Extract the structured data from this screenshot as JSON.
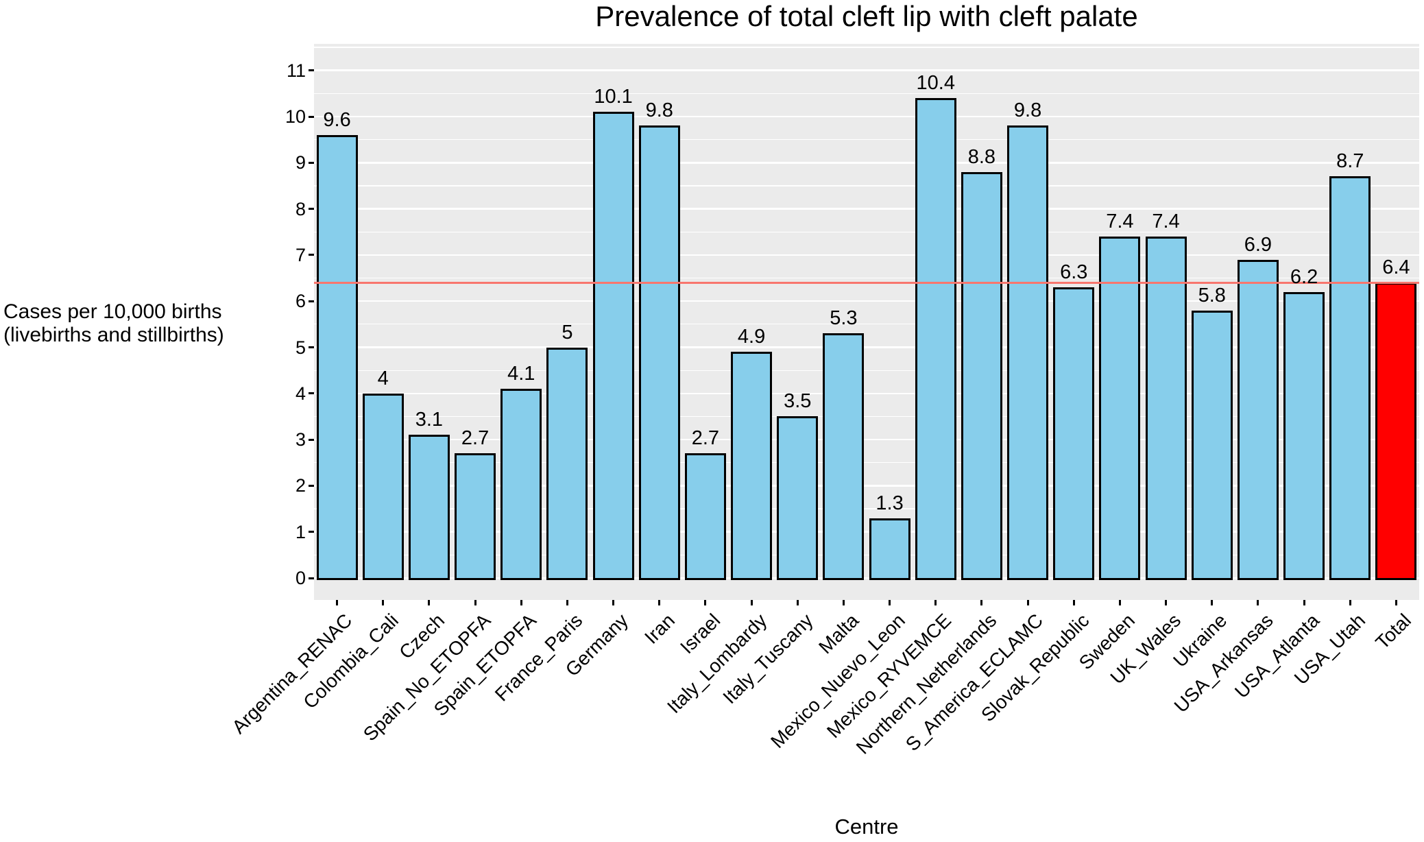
{
  "chart_data": {
    "type": "bar",
    "title": "Prevalence of total cleft lip with cleft palate",
    "xlabel": "Centre",
    "ylabel": "Cases per 10,000 births\n(livebirths and stillbirths)",
    "categories": [
      "Argentina_RENAC",
      "Colombia_Cali",
      "Czech",
      "Spain_No_ETOPFA",
      "Spain_ETOPFA",
      "France_Paris",
      "Germany",
      "Iran",
      "Israel",
      "Italy_Lombardy",
      "Italy_Tuscany",
      "Malta",
      "Mexico_Nuevo_Leon",
      "Mexico_RYVEMCE",
      "Northern_Netherlands",
      "S_America_ECLAMC",
      "Slovak_Republic",
      "Sweden",
      "UK_Wales",
      "Ukraine",
      "USA_Arkansas",
      "USA_Atlanta",
      "USA_Utah",
      "Total"
    ],
    "values": [
      9.6,
      4,
      3.1,
      2.7,
      4.1,
      5,
      10.1,
      9.8,
      2.7,
      4.9,
      3.5,
      5.3,
      1.3,
      10.4,
      8.8,
      9.8,
      6.3,
      7.4,
      7.4,
      5.8,
      6.9,
      6.2,
      8.7,
      6.4
    ],
    "value_labels": [
      "9.6",
      "4",
      "3.1",
      "2.7",
      "4.1",
      "5",
      "10.1",
      "9.8",
      "2.7",
      "4.9",
      "3.5",
      "5.3",
      "1.3",
      "10.4",
      "8.8",
      "9.8",
      "6.3",
      "7.4",
      "7.4",
      "5.8",
      "6.9",
      "6.2",
      "8.7",
      "6.4"
    ],
    "highlight_category": "Total",
    "highlight_index": 23,
    "reference_line": {
      "value": 6.4,
      "color": "#F8766D"
    },
    "yticks": [
      0,
      1,
      2,
      3,
      4,
      5,
      6,
      7,
      8,
      9,
      10,
      11
    ],
    "ylim": [
      0,
      11
    ],
    "axis_value_range": [
      -0.48,
      11.57
    ],
    "minor_grid_step": 0.5,
    "grid": true,
    "legend": "none",
    "colors": {
      "bar_fill": "#87CEEB",
      "bar_stroke": "#000000",
      "highlight_fill": "#FF0000",
      "panel_background": "#EBEBEB",
      "grid_major": "#FFFFFF",
      "grid_minor": "#FFFFFF",
      "tick": "#000000",
      "text": "#000000"
    }
  }
}
